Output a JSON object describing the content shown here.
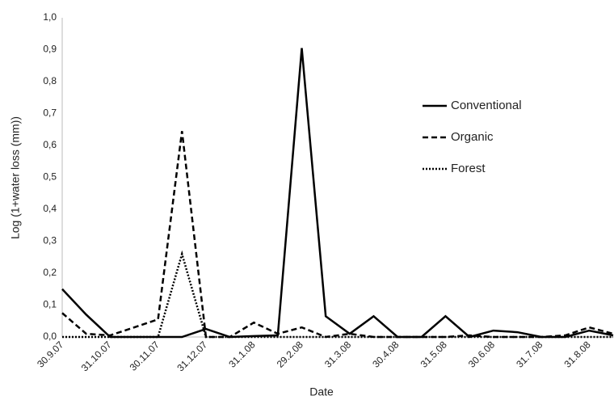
{
  "chart_data": {
    "type": "line",
    "x_label": "Date",
    "y_label": "Log (1+water loss (mm))",
    "categories": [
      "30.9.07",
      null,
      "31.10.07",
      null,
      "30.11.07",
      null,
      "31.12.07",
      null,
      "31.1.08",
      null,
      "29.2.08",
      null,
      "31.3.08",
      null,
      "30.4.08",
      null,
      "31.5.08",
      null,
      "30.6.08",
      null,
      "31.7.08",
      null,
      "31.8.08",
      null
    ],
    "series": [
      {
        "name": "Conventional",
        "color": "#000000",
        "dash": "solid",
        "values": [
          0.15,
          0.07,
          0,
          0,
          0,
          0,
          0.025,
          0,
          0.003,
          0.005,
          0.905,
          0.065,
          0.01,
          0.065,
          0,
          0,
          0.065,
          0,
          0.02,
          0.015,
          0,
          0,
          0.02,
          0.005
        ]
      },
      {
        "name": "Organic",
        "color": "#000000",
        "dash": "dashed",
        "values": [
          0.075,
          0.01,
          0.005,
          0.03,
          0.055,
          0.645,
          0,
          0,
          0.045,
          0.01,
          0.03,
          0,
          0.01,
          0,
          0,
          0,
          0,
          0.005,
          0,
          0,
          0,
          0.005,
          0.03,
          0.01
        ]
      },
      {
        "name": "Forest",
        "color": "#000000",
        "dash": "dotted",
        "values": [
          0,
          0,
          0,
          0,
          0,
          0.26,
          0,
          0,
          0,
          0,
          0,
          0,
          0,
          0,
          0,
          0,
          0,
          0,
          0,
          0,
          0,
          0,
          0,
          0
        ]
      }
    ],
    "ylim": [
      0,
      1
    ],
    "yticks": [
      {
        "value": 0,
        "label": "0,0"
      },
      {
        "value": 0.1,
        "label": "0,1"
      },
      {
        "value": 0.2,
        "label": "0,2"
      },
      {
        "value": 0.3,
        "label": "0,3"
      },
      {
        "value": 0.4,
        "label": "0,4"
      },
      {
        "value": 0.5,
        "label": "0,5"
      },
      {
        "value": 0.6,
        "label": "0,6"
      },
      {
        "value": 0.7,
        "label": "0,7"
      },
      {
        "value": 0.8,
        "label": "0,8"
      },
      {
        "value": 0.9,
        "label": "0,9"
      },
      {
        "value": 1,
        "label": "1,0"
      }
    ],
    "grid": false,
    "legend": "right"
  }
}
